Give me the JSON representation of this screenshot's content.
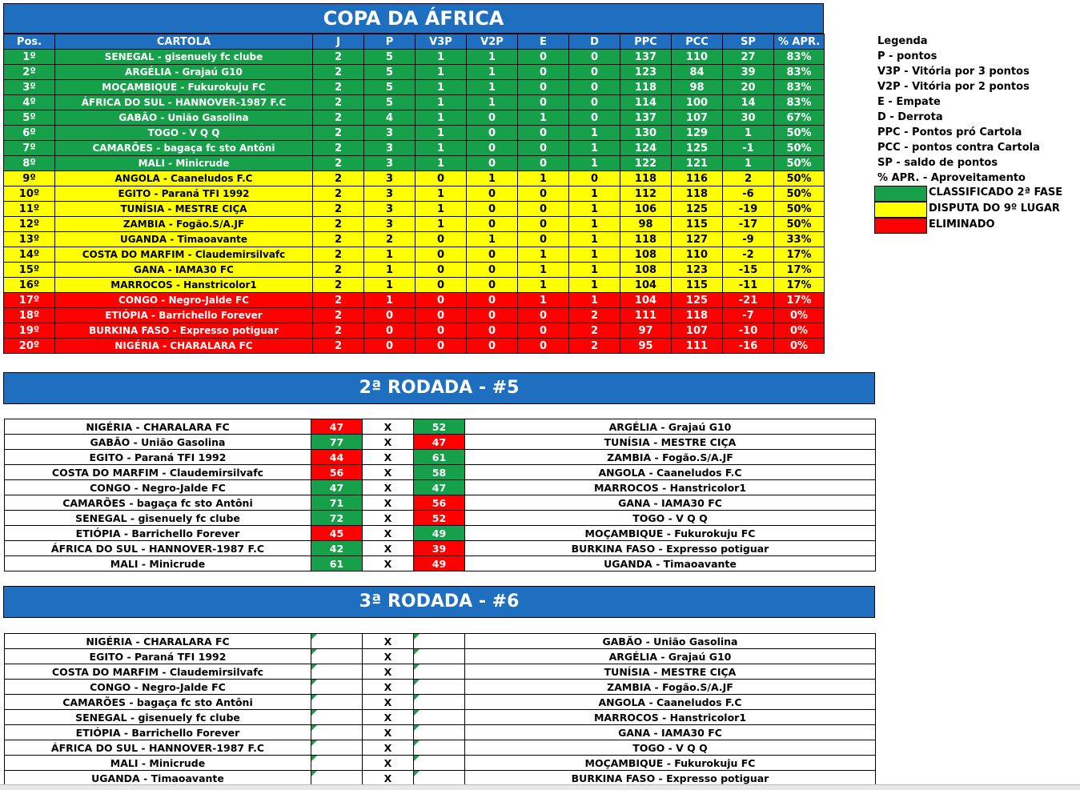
{
  "title": "COPA DA ÁFRICA",
  "standings_headers": [
    "Pos.",
    "CARTOLA",
    "J",
    "P",
    "V3P",
    "V2P",
    "E",
    "D",
    "PPC",
    "PCC",
    "SP",
    "% APR."
  ],
  "standings": [
    {
      "pos": "1º",
      "team": "SENEGAL - gisenuely fc clube",
      "j": "2",
      "p": "5",
      "v3p": "1",
      "v2p": "1",
      "e": "0",
      "d": "0",
      "ppc": "137",
      "pcc": "110",
      "sp": "27",
      "apr": "83%",
      "status": "g"
    },
    {
      "pos": "2º",
      "team": "ARGÉLIA - Grajaú G10",
      "j": "2",
      "p": "5",
      "v3p": "1",
      "v2p": "1",
      "e": "0",
      "d": "0",
      "ppc": "123",
      "pcc": "84",
      "sp": "39",
      "apr": "83%",
      "status": "g"
    },
    {
      "pos": "3º",
      "team": "MOÇAMBIQUE - Fukurokuju FC",
      "j": "2",
      "p": "5",
      "v3p": "1",
      "v2p": "1",
      "e": "0",
      "d": "0",
      "ppc": "118",
      "pcc": "98",
      "sp": "20",
      "apr": "83%",
      "status": "g"
    },
    {
      "pos": "4º",
      "team": "ÁFRICA DO SUL - HANNOVER-1987 F.C",
      "j": "2",
      "p": "5",
      "v3p": "1",
      "v2p": "1",
      "e": "0",
      "d": "0",
      "ppc": "114",
      "pcc": "100",
      "sp": "14",
      "apr": "83%",
      "status": "g"
    },
    {
      "pos": "5º",
      "team": "GABÃO - União Gasolina",
      "j": "2",
      "p": "4",
      "v3p": "1",
      "v2p": "0",
      "e": "1",
      "d": "0",
      "ppc": "137",
      "pcc": "107",
      "sp": "30",
      "apr": "67%",
      "status": "g"
    },
    {
      "pos": "6º",
      "team": "TOGO - V Q Q",
      "j": "2",
      "p": "3",
      "v3p": "1",
      "v2p": "0",
      "e": "0",
      "d": "1",
      "ppc": "130",
      "pcc": "129",
      "sp": "1",
      "apr": "50%",
      "status": "g"
    },
    {
      "pos": "7º",
      "team": "CAMARÕES - bagaça fc sto Antôni",
      "j": "2",
      "p": "3",
      "v3p": "1",
      "v2p": "0",
      "e": "0",
      "d": "1",
      "ppc": "124",
      "pcc": "125",
      "sp": "-1",
      "apr": "50%",
      "status": "g"
    },
    {
      "pos": "8º",
      "team": "MALI - Minicrude",
      "j": "2",
      "p": "3",
      "v3p": "1",
      "v2p": "0",
      "e": "0",
      "d": "1",
      "ppc": "122",
      "pcc": "121",
      "sp": "1",
      "apr": "50%",
      "status": "g"
    },
    {
      "pos": "9º",
      "team": "ANGOLA - Caaneludos F.C",
      "j": "2",
      "p": "3",
      "v3p": "0",
      "v2p": "1",
      "e": "1",
      "d": "0",
      "ppc": "118",
      "pcc": "116",
      "sp": "2",
      "apr": "50%",
      "status": "y"
    },
    {
      "pos": "10º",
      "team": "EGITO - Paraná TFI 1992",
      "j": "2",
      "p": "3",
      "v3p": "1",
      "v2p": "0",
      "e": "0",
      "d": "1",
      "ppc": "112",
      "pcc": "118",
      "sp": "-6",
      "apr": "50%",
      "status": "y"
    },
    {
      "pos": "11º",
      "team": "TUNÍSIA - MESTRE CIÇA",
      "j": "2",
      "p": "3",
      "v3p": "1",
      "v2p": "0",
      "e": "0",
      "d": "1",
      "ppc": "106",
      "pcc": "125",
      "sp": "-19",
      "apr": "50%",
      "status": "y"
    },
    {
      "pos": "12º",
      "team": "ZAMBIA - Fogão.S/A.JF",
      "j": "2",
      "p": "3",
      "v3p": "1",
      "v2p": "0",
      "e": "0",
      "d": "1",
      "ppc": "98",
      "pcc": "115",
      "sp": "-17",
      "apr": "50%",
      "status": "y"
    },
    {
      "pos": "13º",
      "team": "UGANDA - Timaoavante",
      "j": "2",
      "p": "2",
      "v3p": "0",
      "v2p": "1",
      "e": "0",
      "d": "1",
      "ppc": "118",
      "pcc": "127",
      "sp": "-9",
      "apr": "33%",
      "status": "y"
    },
    {
      "pos": "14º",
      "team": "COSTA DO MARFIM - Claudemirsilvafc",
      "j": "2",
      "p": "1",
      "v3p": "0",
      "v2p": "0",
      "e": "1",
      "d": "1",
      "ppc": "108",
      "pcc": "110",
      "sp": "-2",
      "apr": "17%",
      "status": "y"
    },
    {
      "pos": "15º",
      "team": "GANA - IAMA30 FC",
      "j": "2",
      "p": "1",
      "v3p": "0",
      "v2p": "0",
      "e": "1",
      "d": "1",
      "ppc": "108",
      "pcc": "123",
      "sp": "-15",
      "apr": "17%",
      "status": "y"
    },
    {
      "pos": "16º",
      "team": "MARROCOS - Hanstricolor1",
      "j": "2",
      "p": "1",
      "v3p": "0",
      "v2p": "0",
      "e": "1",
      "d": "1",
      "ppc": "104",
      "pcc": "115",
      "sp": "-11",
      "apr": "17%",
      "status": "y"
    },
    {
      "pos": "17º",
      "team": "CONGO - Negro-Jalde FC",
      "j": "2",
      "p": "1",
      "v3p": "0",
      "v2p": "0",
      "e": "1",
      "d": "1",
      "ppc": "104",
      "pcc": "125",
      "sp": "-21",
      "apr": "17%",
      "status": "r"
    },
    {
      "pos": "18º",
      "team": "ETIÓPIA - Barrichello Forever",
      "j": "2",
      "p": "0",
      "v3p": "0",
      "v2p": "0",
      "e": "0",
      "d": "2",
      "ppc": "111",
      "pcc": "118",
      "sp": "-7",
      "apr": "0%",
      "status": "r"
    },
    {
      "pos": "19º",
      "team": "BURKINA FASO - Expresso potiguar",
      "j": "2",
      "p": "0",
      "v3p": "0",
      "v2p": "0",
      "e": "0",
      "d": "2",
      "ppc": "97",
      "pcc": "107",
      "sp": "-10",
      "apr": "0%",
      "status": "r"
    },
    {
      "pos": "20º",
      "team": "NIGÉRIA - CHARALARA FC",
      "j": "2",
      "p": "0",
      "v3p": "0",
      "v2p": "0",
      "e": "0",
      "d": "2",
      "ppc": "95",
      "pcc": "111",
      "sp": "-16",
      "apr": "0%",
      "status": "r"
    }
  ],
  "legend": {
    "title": "Legenda",
    "items": [
      "P - pontos",
      "V3P - Vitória por 3 pontos",
      "V2P - Vitória por 2 pontos",
      "E - Empate",
      "D - Derrota",
      "PPC - Pontos pró Cartola",
      "PCC - pontos contra Cartola",
      "SP - saldo de pontos",
      "% APR. - Aproveitamento"
    ],
    "status": [
      {
        "label": "CLASSIFICADO 2ª FASE",
        "color": "#17a04a"
      },
      {
        "label": "DISPUTA DO 9º LUGAR",
        "color": "#ffff00"
      },
      {
        "label": "ELIMINADO",
        "color": "#ff0000"
      }
    ]
  },
  "round2": {
    "title": "2ª RODADA - #5",
    "vs": "X",
    "matches": [
      {
        "home": "NIGÉRIA - CHARALARA FC",
        "hs": "47",
        "as": "52",
        "away": "ARGÉLIA - Grajaú G10",
        "hr": "l",
        "ar": "w"
      },
      {
        "home": "GABÃO - União Gasolina",
        "hs": "77",
        "as": "47",
        "away": "TUNÍSIA - MESTRE CIÇA",
        "hr": "w",
        "ar": "l"
      },
      {
        "home": "EGITO - Paraná TFI 1992",
        "hs": "44",
        "as": "61",
        "away": "ZAMBIA - Fogão.S/A.JF",
        "hr": "l",
        "ar": "w"
      },
      {
        "home": "COSTA DO MARFIM - Claudemirsilvafc",
        "hs": "56",
        "as": "58",
        "away": "ANGOLA - Caaneludos F.C",
        "hr": "l",
        "ar": "w"
      },
      {
        "home": "CONGO - Negro-Jalde FC",
        "hs": "47",
        "as": "47",
        "away": "MARROCOS - Hanstricolor1",
        "hr": "w",
        "ar": "w"
      },
      {
        "home": "CAMARÕES - bagaça fc sto Antôni",
        "hs": "71",
        "as": "56",
        "away": "GANA - IAMA30 FC",
        "hr": "w",
        "ar": "l"
      },
      {
        "home": "SENEGAL - gisenuely fc clube",
        "hs": "72",
        "as": "52",
        "away": "TOGO - V Q Q",
        "hr": "w",
        "ar": "l"
      },
      {
        "home": "ETIÓPIA - Barrichello Forever",
        "hs": "45",
        "as": "49",
        "away": "MOÇAMBIQUE - Fukurokuju FC",
        "hr": "l",
        "ar": "w"
      },
      {
        "home": "ÁFRICA DO SUL - HANNOVER-1987 F.C",
        "hs": "42",
        "as": "39",
        "away": "BURKINA FASO - Expresso potiguar",
        "hr": "w",
        "ar": "l"
      },
      {
        "home": "MALI - Minicrude",
        "hs": "61",
        "as": "49",
        "away": "UGANDA - Timaoavante",
        "hr": "w",
        "ar": "l"
      }
    ]
  },
  "round3": {
    "title": "3ª RODADA - #6",
    "vs": "X",
    "matches": [
      {
        "home": "NIGÉRIA - CHARALARA FC",
        "away": "GABÃO - União Gasolina"
      },
      {
        "home": "EGITO - Paraná TFI 1992",
        "away": "ARGÉLIA - Grajaú G10"
      },
      {
        "home": "COSTA DO MARFIM - Claudemirsilvafc",
        "away": "TUNÍSIA - MESTRE CIÇA"
      },
      {
        "home": "CONGO - Negro-Jalde FC",
        "away": "ZAMBIA - Fogão.S/A.JF"
      },
      {
        "home": "CAMARÕES - bagaça fc sto Antôni",
        "away": "ANGOLA - Caaneludos F.C"
      },
      {
        "home": "SENEGAL - gisenuely fc clube",
        "away": "MARROCOS - Hanstricolor1"
      },
      {
        "home": "ETIÓPIA - Barrichello Forever",
        "away": "GANA - IAMA30 FC"
      },
      {
        "home": "ÁFRICA DO SUL - HANNOVER-1987 F.C",
        "away": "TOGO - V Q Q"
      },
      {
        "home": "MALI - Minicrude",
        "away": "MOÇAMBIQUE - Fukurokuju FC"
      },
      {
        "home": "UGANDA - Timaoavante",
        "away": "BURKINA FASO - Expresso potiguar"
      }
    ]
  }
}
